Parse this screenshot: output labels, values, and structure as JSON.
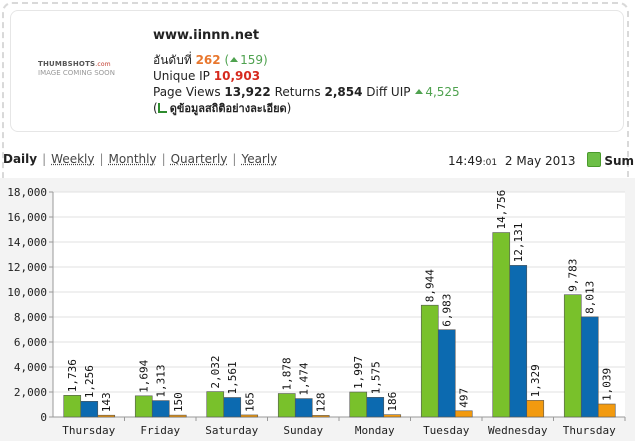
{
  "header": {
    "url": "www.iinnn.net",
    "thumb_brand": "THUMBSHOTS",
    "thumb_brand_suffix": ".com",
    "thumb_placeholder": "IMAGE COMING SOON",
    "rank_label": "อันดับที่",
    "rank_value": "262",
    "rank_change": "159",
    "unique_ip_label": "Unique IP",
    "unique_ip_value": "10,903",
    "page_views_label": "Page Views",
    "page_views_value": "13,922",
    "returns_label": "Returns",
    "returns_value": "2,854",
    "diff_uip_label": "Diff UIP",
    "diff_uip_value": "4,525",
    "detail_open": "(",
    "detail_link": "ดูข้อมูลสถิติอย่างละเอียด",
    "detail_close": ")"
  },
  "tabs": [
    "Daily",
    "Weekly",
    "Monthly",
    "Quarterly",
    "Yearly"
  ],
  "tab_sep": "|",
  "active_tab": "Daily",
  "time": "14:49",
  "time_seconds": ":01",
  "date": "2 May 2013",
  "summary_label": "Summar",
  "chart_data": {
    "type": "bar",
    "categories": [
      "Thursday",
      "Friday",
      "Saturday",
      "Sunday",
      "Monday",
      "Tuesday",
      "Wednesday",
      "Thursday"
    ],
    "series": [
      {
        "values": [
          1736,
          1694,
          2032,
          1878,
          1997,
          8944,
          14756,
          9783
        ],
        "color": "#79c12b"
      },
      {
        "values": [
          1256,
          1313,
          1561,
          1474,
          1575,
          6983,
          12131,
          8013
        ],
        "color": "#0c6ab0"
      },
      {
        "values": [
          143,
          150,
          165,
          128,
          186,
          497,
          1329,
          1039
        ],
        "color": "#f29a0f"
      }
    ],
    "ylim": [
      0,
      18000
    ],
    "yticks": [
      0,
      2000,
      4000,
      6000,
      8000,
      10000,
      12000,
      14000,
      16000,
      18000
    ],
    "ytick_labels": [
      "0",
      "2,000",
      "4,000",
      "6,000",
      "8,000",
      "10,000",
      "12,000",
      "14,000",
      "16,000",
      "18,000"
    ],
    "data_labels": [
      [
        "1,736",
        "1,694",
        "2,032",
        "1,878",
        "1,997",
        "8,944",
        "14,756",
        "9,783"
      ],
      [
        "1,256",
        "1,313",
        "1,561",
        "1,474",
        "1,575",
        "6,983",
        "12,131",
        "8,013"
      ],
      [
        "143",
        "150",
        "165",
        "128",
        "186",
        "497",
        "1,329",
        "1,039"
      ]
    ],
    "grid": true,
    "title": "",
    "xlabel": "",
    "ylabel": ""
  }
}
